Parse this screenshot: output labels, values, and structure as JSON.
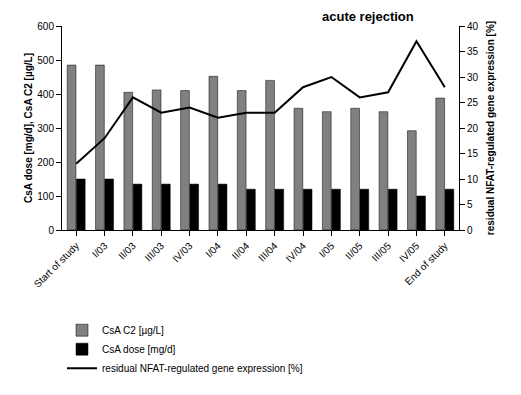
{
  "chart_data": {
    "type": "bar",
    "categories": [
      "Start of study",
      "I/03",
      "II/03",
      "III/03",
      "IV/03",
      "I/04",
      "II/04",
      "III/04",
      "IV/04",
      "I/05",
      "II/05",
      "III/05",
      "IV/05",
      "End of study"
    ],
    "series": [
      {
        "name": "CsA C2 [µg/L]",
        "type": "bar",
        "color": "#808080",
        "values": [
          485,
          485,
          405,
          412,
          410,
          452,
          410,
          440,
          358,
          348,
          358,
          348,
          292,
          388
        ]
      },
      {
        "name": "CsA dose [mg/d]",
        "type": "bar",
        "color": "#000000",
        "values": [
          150,
          150,
          135,
          135,
          135,
          135,
          120,
          120,
          120,
          120,
          120,
          120,
          100,
          120
        ]
      },
      {
        "name": "residual NFAT-regulated gene expression [%]",
        "type": "line",
        "color": "#000000",
        "line_style": "solid",
        "axis": "y2",
        "values": [
          13,
          18,
          26,
          23,
          24,
          22,
          23,
          23,
          28,
          30,
          26,
          27,
          37,
          28
        ]
      }
    ],
    "y_label": "CsA dose [mg/d], CsA C2 [µg/L]",
    "y2_label": "residual NFAT-regulated gene expression [%]",
    "ylim": [
      0,
      600
    ],
    "yticks": [
      0,
      100,
      200,
      300,
      400,
      500,
      600
    ],
    "y2lim": [
      0,
      40
    ],
    "y2ticks": [
      0,
      5,
      10,
      15,
      20,
      25,
      30,
      35,
      40
    ],
    "annotations": [
      {
        "text": "acute rejection",
        "category": "IV/05"
      }
    ],
    "grid": false,
    "legend": "bottom"
  }
}
